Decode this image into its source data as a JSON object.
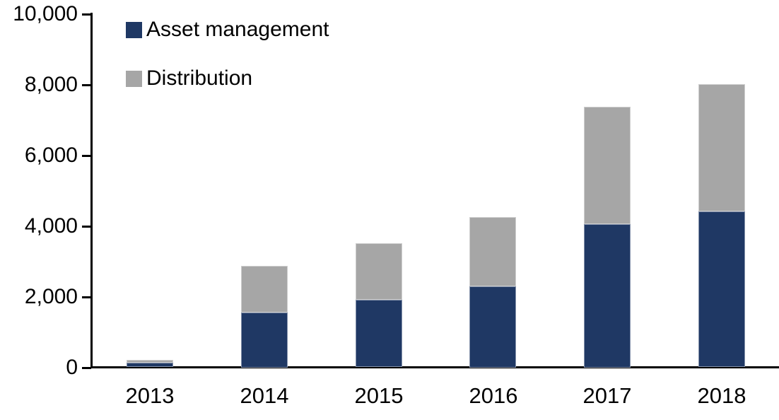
{
  "chart_data": {
    "type": "bar",
    "stacked": true,
    "title": "",
    "xlabel": "",
    "ylabel": "",
    "categories": [
      "2013",
      "2014",
      "2015",
      "2016",
      "2017",
      "2018"
    ],
    "series": [
      {
        "name": "Asset management",
        "color": "#1f3864",
        "values": [
          120,
          1550,
          1900,
          2300,
          4050,
          4400
        ]
      },
      {
        "name": "Distribution",
        "color": "#a6a6a6",
        "values": [
          80,
          1320,
          1600,
          1950,
          3320,
          3600
        ]
      }
    ],
    "totals": [
      200,
      2870,
      3500,
      4250,
      7370,
      8000
    ],
    "ylim": [
      0,
      10000
    ],
    "ytick_interval": 2000,
    "ytick_labels": [
      "0",
      "2,000",
      "4,000",
      "6,000",
      "8,000",
      "10,000"
    ],
    "grid": false,
    "legend_position": "top-left-inside",
    "axis_color": "#000000",
    "background_color": "#ffffff"
  }
}
